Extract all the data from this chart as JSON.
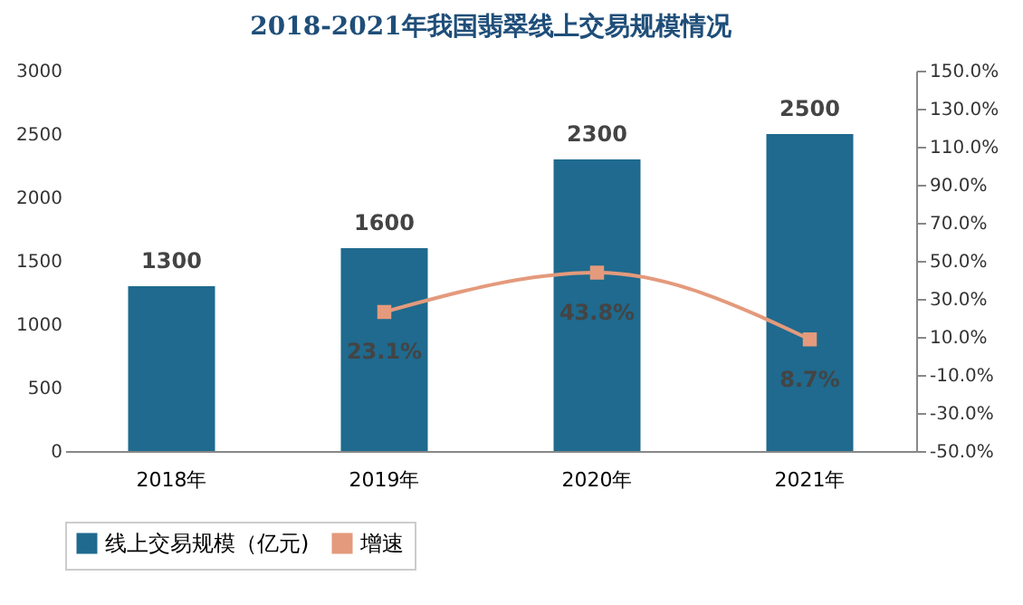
{
  "chart_data": {
    "type": "bar",
    "title": "2018-2021年我国翡翠线上交易规模情况",
    "categories": [
      "2018年",
      "2019年",
      "2020年",
      "2021年"
    ],
    "series": [
      {
        "name": "线上交易规模（亿元)",
        "color": "#1f6a8e",
        "values": [
          1300,
          1600,
          2300,
          2500
        ],
        "value_labels": [
          "1300",
          "1600",
          "2300",
          "2500"
        ]
      },
      {
        "name": "增速",
        "type": "line",
        "axis": "y2",
        "color": "#e49a7c",
        "values": [
          null,
          23.1,
          43.8,
          8.7
        ],
        "value_labels": [
          null,
          "23.1%",
          "43.8%",
          "8.7%"
        ]
      }
    ],
    "ylim": [
      0,
      3000
    ],
    "yticks": [
      0,
      500,
      1000,
      1500,
      2000,
      2500,
      3000
    ],
    "y2lim": [
      -50,
      150
    ],
    "y2ticks": [
      {
        "value": -50,
        "label": "-50.0%"
      },
      {
        "value": -30,
        "label": "-30.0%"
      },
      {
        "value": -10,
        "label": "-10.0%"
      },
      {
        "value": 10,
        "label": "10.0%"
      },
      {
        "value": 30,
        "label": "30.0%"
      },
      {
        "value": 50,
        "label": "50.0%"
      },
      {
        "value": 70,
        "label": "70.0%"
      },
      {
        "value": 90,
        "label": "90.0%"
      },
      {
        "value": 110,
        "label": "110.0%"
      },
      {
        "value": 130,
        "label": "130.0%"
      },
      {
        "value": 150,
        "label": "150.0%"
      }
    ],
    "marker": "square",
    "legend": "bottom",
    "grid": false
  }
}
